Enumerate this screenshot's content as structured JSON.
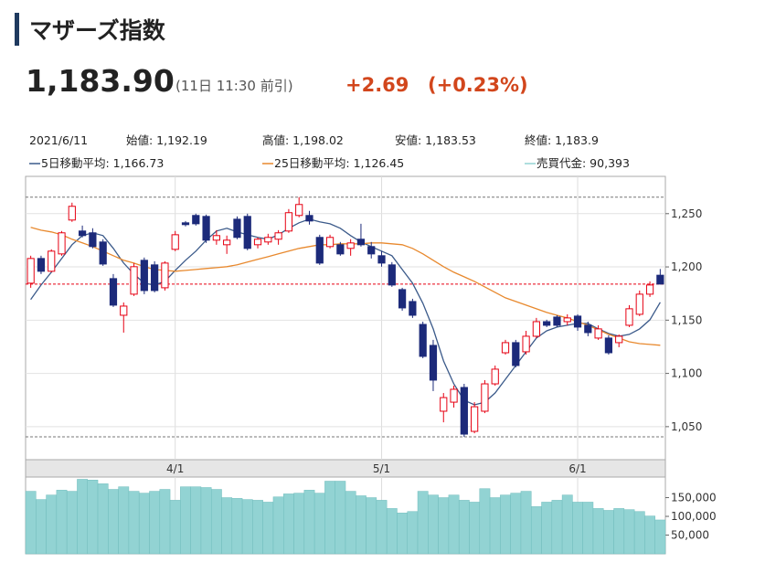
{
  "header": {
    "title": "マザーズ指数",
    "price": "1,183.90",
    "time": "(11日 11:30 前引)",
    "change": "+2.69",
    "change_pct": "(+0.23%)"
  },
  "info": {
    "date": "2021/6/11",
    "open": "始値: 1,192.19",
    "high": "高値: 1,198.02",
    "low": "安値: 1,183.53",
    "close": "終値: 1,183.9"
  },
  "chart_data": [
    {
      "type": "candlestick",
      "categories": [
        null,
        null,
        null,
        null,
        null,
        null,
        null,
        null,
        null,
        null,
        null,
        null,
        null,
        null,
        "4/1",
        null,
        null,
        null,
        null,
        null,
        null,
        null,
        null,
        null,
        null,
        null,
        null,
        null,
        null,
        null,
        null,
        null,
        null,
        null,
        "5/1",
        null,
        null,
        null,
        null,
        null,
        null,
        null,
        null,
        null,
        null,
        null,
        null,
        null,
        null,
        null,
        null,
        null,
        null,
        "6/1",
        null,
        null,
        null,
        null,
        null,
        null,
        null,
        null
      ],
      "open": [
        1184.7,
        1207.9,
        1195.9,
        1212.2,
        1244,
        1233.7,
        1232,
        1223.4,
        1189,
        1154.6,
        1174.4,
        1206.2,
        1201.9,
        1180.4,
        1216.5,
        1241.4,
        1248.3,
        1247.4,
        1225.1,
        1220.8,
        1244.8,
        1247.4,
        1220.8,
        1223.4,
        1226,
        1233.7,
        1248.3,
        1248.3,
        1227.7,
        1219.1,
        1220.8,
        1217.4,
        1226,
        1219.1,
        1210.5,
        1201.9,
        1178.7,
        1167.5,
        1146,
        1126.3,
        1064.5,
        1073,
        1086.8,
        1045.6,
        1064.5,
        1090.2,
        1119.4,
        1128.9,
        1120.3,
        1134.9,
        1148.6,
        1152.9,
        1148.6,
        1153.8,
        1145.2,
        1133.2,
        1133.2,
        1128.9,
        1145.2,
        1155.5,
        1174.4,
        1192.19
      ],
      "high": [
        1210.5,
        1210.5,
        1216.5,
        1233.7,
        1260.3,
        1238.8,
        1236.3,
        1226,
        1193.3,
        1166.6,
        1203.6,
        1208.8,
        1205.3,
        1205.3,
        1233.7,
        1243.1,
        1250,
        1249.1,
        1234.5,
        1229.4,
        1247.4,
        1250,
        1227.7,
        1231.1,
        1234.5,
        1254.3,
        1265.5,
        1252.6,
        1230.2,
        1230.2,
        1223.4,
        1226,
        1240.5,
        1223.4,
        1214.8,
        1204.5,
        1180.4,
        1170.1,
        1148.6,
        1131.5,
        1081.6,
        1088.5,
        1090.2,
        1073,
        1093.7,
        1107.4,
        1131.5,
        1131.5,
        1140,
        1152.1,
        1150.4,
        1154.6,
        1155.5,
        1155.5,
        1148.6,
        1145.2,
        1135.8,
        1136.6,
        1164.1,
        1177.8,
        1186.4,
        1198.02
      ],
      "low": [
        1180.4,
        1193.3,
        1195,
        1210.5,
        1242.3,
        1227.7,
        1217.4,
        1201,
        1162.4,
        1138.3,
        1172.7,
        1174.4,
        1176.1,
        1177.8,
        1214.8,
        1238,
        1238.8,
        1222.5,
        1220.8,
        1212.2,
        1226,
        1215.6,
        1217.4,
        1220.8,
        1220.8,
        1232,
        1246.6,
        1239.7,
        1201.9,
        1217.4,
        1210.5,
        1210.5,
        1219.1,
        1207.9,
        1200.2,
        1181.3,
        1158.9,
        1152.1,
        1114.3,
        1083.4,
        1054.1,
        1067.9,
        1040.4,
        1043.8,
        1062.7,
        1088.5,
        1117.7,
        1105.7,
        1117.7,
        1133.2,
        1143.5,
        1143.5,
        1145.2,
        1140,
        1134.9,
        1131.5,
        1117.7,
        1124.6,
        1143.5,
        1153.8,
        1171.8,
        1183.53
      ],
      "close": [
        1207.9,
        1195.9,
        1214.8,
        1232,
        1256.9,
        1229.4,
        1219.1,
        1202.7,
        1164.1,
        1163.2,
        1200.2,
        1177.8,
        1177.8,
        1203.6,
        1230.2,
        1239.7,
        1240.5,
        1225.1,
        1229.4,
        1225.1,
        1227.7,
        1217.4,
        1226,
        1227.7,
        1232,
        1250.9,
        1258.6,
        1243.1,
        1203.6,
        1227.7,
        1212.2,
        1222.5,
        1220.8,
        1212.2,
        1203.6,
        1183,
        1161.5,
        1154.6,
        1116,
        1093.7,
        1077.3,
        1085.1,
        1043,
        1068.7,
        1090.2,
        1104,
        1128.9,
        1107.4,
        1134.9,
        1148.6,
        1145.2,
        1145.2,
        1152.1,
        1143.5,
        1138.3,
        1141.8,
        1119.4,
        1134.9,
        1160.7,
        1174.4,
        1183,
        1183.9
      ],
      "up_color": "#e60012",
      "down_color": "#1c2a7a",
      "series": [
        {
          "name": "5日移動平均: 1,166.73",
          "color": "#3b5a8a",
          "values": [
            1169.3,
            1183,
            1195,
            1207.9,
            1220.8,
            1229.4,
            1232,
            1229.4,
            1217.4,
            1203.6,
            1193.3,
            1184.7,
            1183,
            1186.4,
            1196.7,
            1206.2,
            1214.8,
            1225.1,
            1233.7,
            1236.3,
            1232.8,
            1230.2,
            1227.7,
            1226,
            1230.2,
            1236.3,
            1241.4,
            1244.8,
            1242.3,
            1240.5,
            1236.3,
            1229.4,
            1223.4,
            1219.1,
            1214.8,
            1210.5,
            1197.6,
            1184.7,
            1165.8,
            1141.8,
            1111.7,
            1090.2,
            1074.8,
            1070.5,
            1073,
            1081.6,
            1094.5,
            1107.4,
            1120.3,
            1133.2,
            1140,
            1143.5,
            1145.2,
            1146.9,
            1146.9,
            1141.8,
            1137.5,
            1134.9,
            1136.6,
            1141.8,
            1150.4,
            1166.73
          ]
        },
        {
          "name": "25日移動平均: 1,126.45",
          "color": "#e8892e",
          "values": [
            1237.1,
            1234.5,
            1232.8,
            1230.2,
            1226,
            1222.5,
            1219.1,
            1214.8,
            1210.5,
            1206.2,
            1203.6,
            1200.2,
            1197.6,
            1196.7,
            1195.9,
            1196.7,
            1197.6,
            1198.5,
            1199.3,
            1200.2,
            1201.9,
            1204.5,
            1207.1,
            1209.6,
            1212.2,
            1214.8,
            1217.4,
            1219.1,
            1220.8,
            1220.8,
            1221.7,
            1221.7,
            1221.7,
            1222.5,
            1222.5,
            1221.7,
            1220.8,
            1217.4,
            1212.2,
            1206.2,
            1200.2,
            1195,
            1190.7,
            1186.4,
            1181.3,
            1176.1,
            1171,
            1167.5,
            1164.1,
            1160.7,
            1157.2,
            1154.6,
            1152.1,
            1148.6,
            1145.2,
            1140.9,
            1136.6,
            1133.2,
            1129.7,
            1128,
            1127.2,
            1126.45
          ]
        }
      ],
      "reference_lines": [
        {
          "value": 1183.9,
          "color": "#e60012"
        },
        {
          "value": 1265.5,
          "color": "#777777"
        },
        {
          "value": 1040.4,
          "color": "#777777"
        }
      ],
      "ylim": [
        1019,
        1285
      ],
      "yticks": [
        {
          "value": 1050,
          "label": "1,050"
        },
        {
          "value": 1100,
          "label": "1,100"
        },
        {
          "value": 1150,
          "label": "1,150"
        },
        {
          "value": 1200,
          "label": "1,200"
        },
        {
          "value": 1250,
          "label": "1,250"
        }
      ],
      "grid": true
    },
    {
      "type": "bar",
      "name": "売買代金: 90,393",
      "color": "#92d3d3",
      "values": [
        167000,
        145000,
        157000,
        170000,
        167000,
        199000,
        197000,
        187000,
        172000,
        179000,
        167000,
        162000,
        167000,
        172000,
        143000,
        179000,
        179000,
        177000,
        172000,
        150000,
        148000,
        145000,
        143000,
        138000,
        152000,
        160000,
        162000,
        170000,
        162000,
        194000,
        194000,
        167000,
        155000,
        150000,
        143000,
        121000,
        109000,
        113000,
        167000,
        157000,
        150000,
        157000,
        143000,
        138000,
        174000,
        150000,
        157000,
        162000,
        167000,
        126000,
        138000,
        143000,
        157000,
        138000,
        138000,
        121000,
        116000,
        121000,
        118000,
        113000,
        101000,
        90393
      ],
      "ylim": [
        0,
        205000
      ],
      "yticks": [
        {
          "value": 50000,
          "label": "50,000"
        },
        {
          "value": 100000,
          "label": "100,000"
        },
        {
          "value": 150000,
          "label": "150,000"
        }
      ]
    }
  ]
}
